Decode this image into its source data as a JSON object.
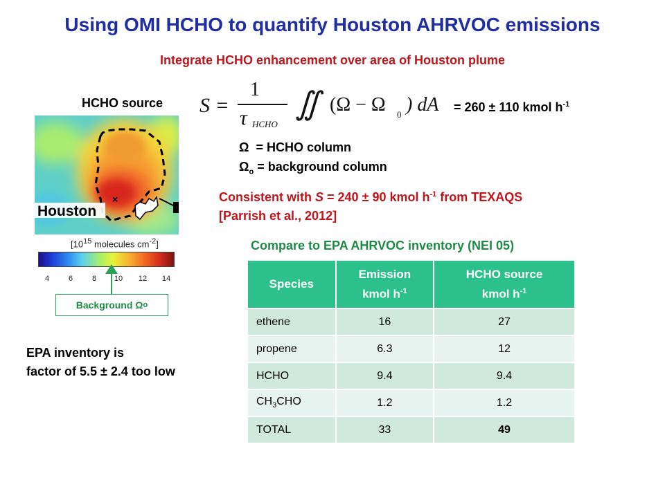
{
  "title": "Using OMI HCHO to quantify Houston AHRVOC emissions",
  "subtitle": "Integrate HCHO enhancement over area of Houston plume",
  "hcho_source_label": "HCHO source",
  "formula": {
    "lhs": "S =",
    "numerator": "1",
    "tau": "τ",
    "tau_sub": "HCHO",
    "integral": "∬",
    "integrand": "(Ω − Ω",
    "integrand_sub": "0",
    "integrand_end": ") dA"
  },
  "result": "= 260 ± 110 kmol h",
  "result_sup": "-1",
  "omega_def": "= HCHO column",
  "omega0_def": "= background column",
  "omega_symbol": "Ω",
  "omega0_sub": "o",
  "consistent": {
    "line1_prefix": "Consistent with ",
    "s_italic": "S",
    "line1_mid": " = 240 ± 90 kmol h",
    "sup": "-1",
    "line1_suffix": " from TEXAQS",
    "line2": "[Parrish et al., 2012]"
  },
  "compare_label": "Compare to EPA AHRVOC inventory (NEI 05)",
  "map_label": "Houston",
  "colorbar_units_prefix": "[10",
  "colorbar_units_sup": "15",
  "colorbar_units_suffix": " molecules cm",
  "colorbar_units_sup2": "-2",
  "colorbar_units_end": "]",
  "colorbar_ticks": [
    "4",
    "6",
    "8",
    "10",
    "12",
    "14"
  ],
  "background_label": "Background Ω",
  "background_sub": "o",
  "epa_note_line1": "EPA inventory is",
  "epa_note_line2": "factor of 5.5 ± 2.4 too low",
  "table": {
    "headers": {
      "species": "Species",
      "emission_line1": "Emission",
      "emission_line2": "kmol h",
      "emission_sup": "-1",
      "hcho_line1": "HCHO source",
      "hcho_line2": "kmol h",
      "hcho_sup": "-1"
    },
    "rows": [
      {
        "species": "ethene",
        "emission": "16",
        "hcho": "27"
      },
      {
        "species": "propene",
        "emission": "6.3",
        "hcho": "12"
      },
      {
        "species": "HCHO",
        "emission": "9.4",
        "hcho": "9.4"
      },
      {
        "species_prefix": "CH",
        "species_sub": "3",
        "species_suffix": "CHO",
        "emission": "1.2",
        "hcho": "1.2"
      },
      {
        "species": "TOTAL",
        "emission": "33",
        "hcho": "49"
      }
    ]
  },
  "colors": {
    "title": "#1f2ea0",
    "red_text": "#c0141b",
    "green_text": "#1e8a45",
    "table_header": "#2bc08c",
    "row_dark": "#cfe9df",
    "row_light": "#e8f4ef"
  }
}
